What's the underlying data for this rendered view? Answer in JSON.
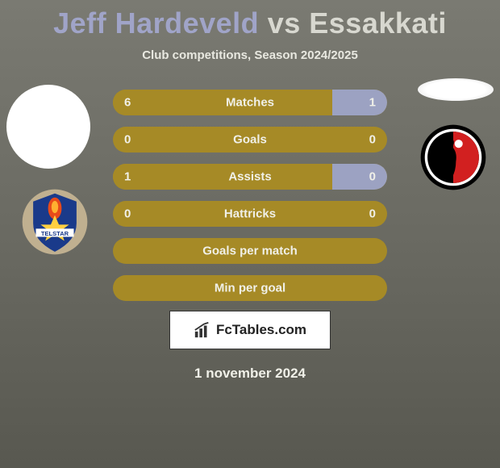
{
  "title": {
    "player1": "Jeff Hardeveld",
    "vs": "vs",
    "player2": "Essakkati"
  },
  "subtitle": "Club competitions, Season 2024/2025",
  "colors": {
    "left_fill": "#a68a26",
    "right_fill": "#9ca2c2",
    "bar_text": "#f0f0e8"
  },
  "bars": [
    {
      "label": "Matches",
      "left_val": "6",
      "right_val": "1",
      "left_pct": 80,
      "right_pct": 20
    },
    {
      "label": "Goals",
      "left_val": "0",
      "right_val": "0",
      "left_pct": 100,
      "right_pct": 0
    },
    {
      "label": "Assists",
      "left_val": "1",
      "right_val": "0",
      "left_pct": 80,
      "right_pct": 20
    },
    {
      "label": "Hattricks",
      "left_val": "0",
      "right_val": "0",
      "left_pct": 100,
      "right_pct": 0
    },
    {
      "label": "Goals per match",
      "left_val": "",
      "right_val": "",
      "left_pct": 100,
      "right_pct": 0
    },
    {
      "label": "Min per goal",
      "left_val": "",
      "right_val": "",
      "left_pct": 100,
      "right_pct": 0
    }
  ],
  "footer_brand": "FcTables.com",
  "date": "1 november 2024",
  "club1": {
    "name": "Telstar",
    "shield_outer": "#c0b090",
    "shield_fill": "#1a3a8a",
    "flame": "#e84a1a",
    "star": "#ffd040",
    "banner_bg": "#ffffff",
    "banner_text_color": "#1a3a8a"
  },
  "club2": {
    "name": "Helmond Sport",
    "outer": "#000000",
    "ring": "#ffffff",
    "inner": "#d22020",
    "fig": "#000000"
  }
}
